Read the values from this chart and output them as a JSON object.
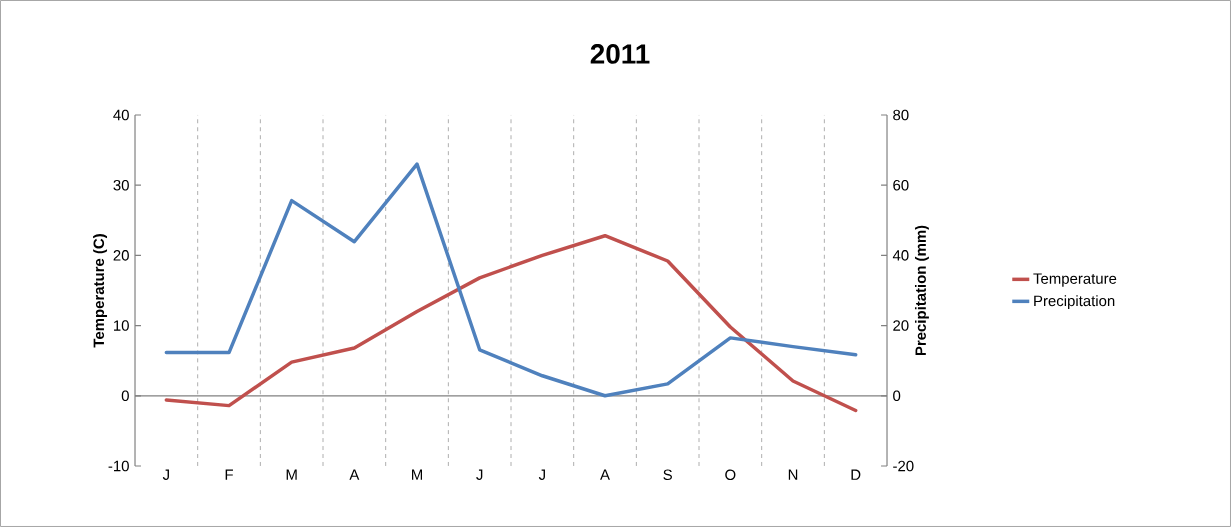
{
  "chart_data": {
    "type": "line",
    "title": "2011",
    "ylabel": "Temperature (C)",
    "y2label": "Precipitation (mm)",
    "categories": [
      "J",
      "F",
      "M",
      "A",
      "M",
      "J",
      "J",
      "A",
      "S",
      "O",
      "N",
      "D"
    ],
    "series": [
      {
        "name": "Temperature",
        "color": "#c0504d",
        "values": [
          -0.6,
          -1.4,
          4.8,
          6.8,
          12.0,
          16.8,
          20.0,
          22.8,
          19.2,
          9.8,
          2.1,
          -2.1
        ]
      },
      {
        "name": "Precipitation",
        "color": "#4f81bd",
        "axis": "y2",
        "values": [
          12.3,
          12.3,
          55.6,
          43.9,
          66.0,
          13.1,
          5.7,
          0.0,
          3.4,
          16.5,
          14.0,
          11.7
        ]
      }
    ],
    "ylim": [
      -10,
      40
    ],
    "yticks": [
      -10,
      0,
      10,
      20,
      30,
      40
    ],
    "y2lim": [
      -20,
      80
    ],
    "y2ticks": [
      -20,
      0,
      20,
      40,
      60,
      80
    ],
    "grid": "x",
    "legend": "right",
    "marker": "none",
    "line_style": "solid"
  }
}
